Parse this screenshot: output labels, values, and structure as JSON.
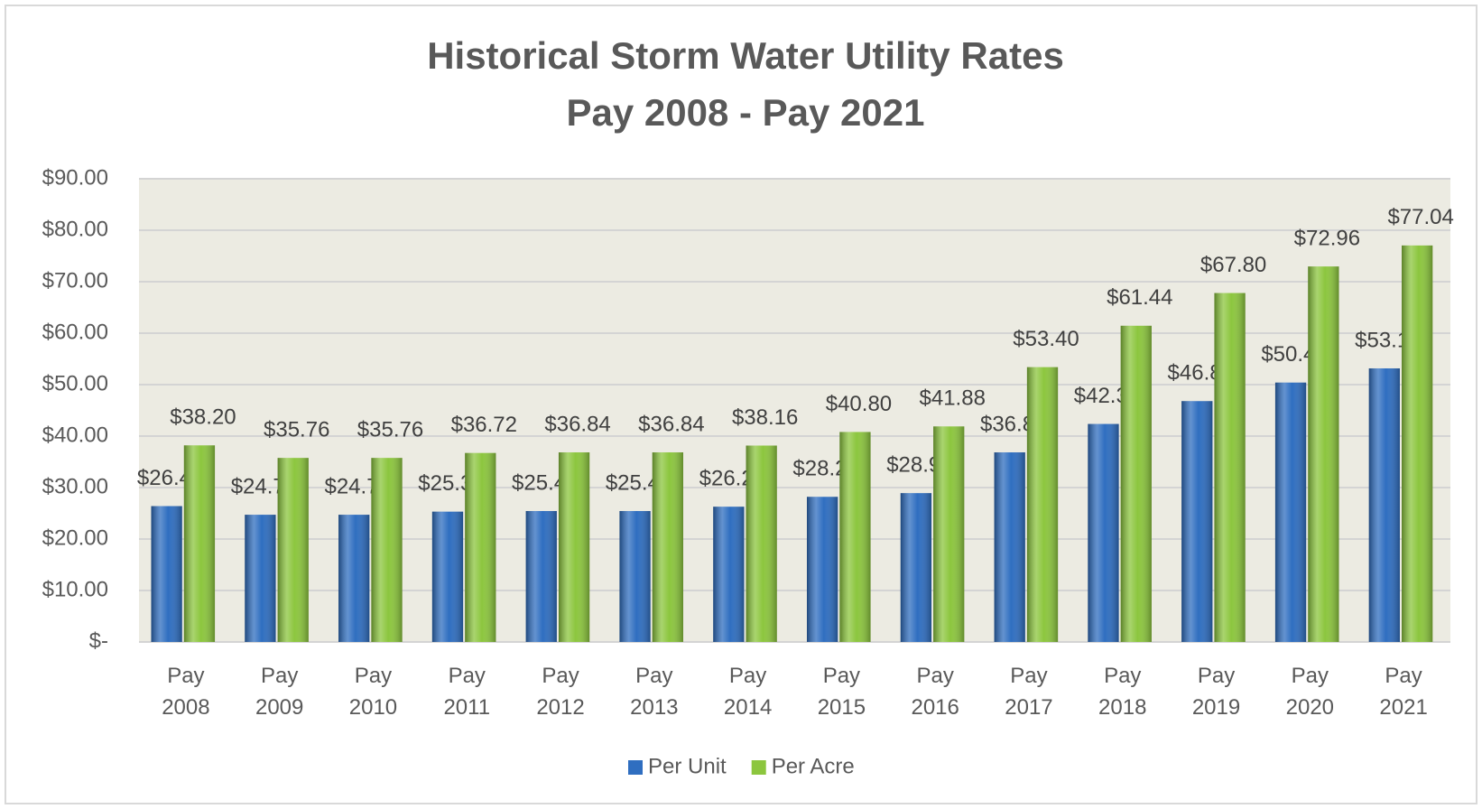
{
  "chart_data": {
    "type": "bar",
    "title": "Historical Storm Water Utility Rates",
    "subtitle": "Pay 2008 - Pay 2021",
    "categories": [
      "Pay 2008",
      "Pay 2009",
      "Pay 2010",
      "Pay 2011",
      "Pay 2012",
      "Pay 2013",
      "Pay 2014",
      "Pay 2015",
      "Pay 2016",
      "Pay 2017",
      "Pay 2018",
      "Pay 2019",
      "Pay 2020",
      "Pay 2021"
    ],
    "series": [
      {
        "name": "Per Unit",
        "color": "#2f6ec0",
        "values": [
          26.4,
          24.72,
          24.72,
          25.32,
          25.44,
          25.44,
          26.28,
          28.2,
          28.92,
          36.84,
          42.36,
          46.8,
          50.4,
          53.16
        ],
        "value_labels": [
          "$26.40",
          "$24.72",
          "$24.72",
          "$25.32",
          "$25.44",
          "$25.44",
          "$26.28",
          "$28.20",
          "$28.92",
          "$36.84",
          "$42.36",
          "$46.80",
          "$50.40",
          "$53.16"
        ]
      },
      {
        "name": "Per Acre",
        "color": "#8cc63e",
        "values": [
          38.2,
          35.76,
          35.76,
          36.72,
          36.84,
          36.84,
          38.16,
          40.8,
          41.88,
          53.4,
          61.44,
          67.8,
          72.96,
          77.04
        ],
        "value_labels": [
          "$38.20",
          "$35.76",
          "$35.76",
          "$36.72",
          "$36.84",
          "$36.84",
          "$38.16",
          "$40.80",
          "$41.88",
          "$53.40",
          "$61.44",
          "$67.80",
          "$72.96",
          "$77.04"
        ]
      }
    ],
    "ylim": [
      0,
      90
    ],
    "yticks": [
      {
        "value": 0,
        "label": "$-"
      },
      {
        "value": 10,
        "label": "$10.00"
      },
      {
        "value": 20,
        "label": "$20.00"
      },
      {
        "value": 30,
        "label": "$30.00"
      },
      {
        "value": 40,
        "label": "$40.00"
      },
      {
        "value": 50,
        "label": "$50.00"
      },
      {
        "value": 60,
        "label": "$60.00"
      },
      {
        "value": 70,
        "label": "$70.00"
      },
      {
        "value": 80,
        "label": "$80.00"
      },
      {
        "value": 90,
        "label": "$90.00"
      }
    ],
    "grid": true,
    "legend": "bottom"
  }
}
